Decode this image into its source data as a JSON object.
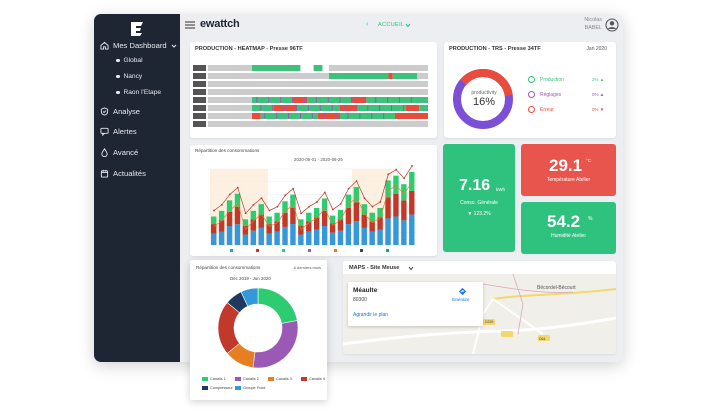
{
  "app": {
    "brand": "ewattch",
    "page_select": "ACCUEIL",
    "user_first": "Nicolas",
    "user_last": "BABEL"
  },
  "sidebar": {
    "dashboard": "Mes Dashboard",
    "subs": [
      "Global",
      "Nancy",
      "Raon l'Etape"
    ],
    "items": [
      "Analyse",
      "Alertes",
      "Avancé",
      "Actualités"
    ]
  },
  "heatmap": {
    "title": "PRODUCTION - HEATMAP - Presse 96TF"
  },
  "trs": {
    "title": "PRODUCTION - TRS - Presse 34TF",
    "period": "Jan 2020",
    "gauge_label": "productivity",
    "gauge_value": "16%",
    "legend": [
      {
        "label": "Production",
        "pct": "2%",
        "color": "#3ec27b"
      },
      {
        "label": "Réglages",
        "pct": "0%",
        "color": "#9b59b6"
      },
      {
        "label": "Erreur",
        "pct": "0%",
        "color": "#e74c3c"
      }
    ]
  },
  "kpi": {
    "conso_value": "7.16",
    "conso_unit": "kWh",
    "conso_label": "Conso. Générale",
    "conso_delta": "▼ 123.2%",
    "temp_value": "29.1",
    "temp_unit": "°C",
    "temp_label": "Température Atelier",
    "hum_value": "54.2",
    "hum_unit": "%",
    "hum_label": "Humidité Atelier"
  },
  "conso_chart": {
    "title": "Répartition des consommations",
    "subtitle": "2020-06-01 - 2020-06-26"
  },
  "donut_card": {
    "title": "Répartition des consommations",
    "range": "6 derniers mois",
    "subtitle": "Dec 2019 - Jun 2020",
    "legend": [
      "Canalis 1",
      "Canalis 2",
      "Canalis 3",
      "Canalis 4",
      "Compresseur",
      "Groupe Froid"
    ]
  },
  "map": {
    "title": "MAPS - Site Meuse",
    "place_name": "Méaulte",
    "place_code": "80300",
    "link_itinerary": "Itinéraire",
    "link_enlarge": "Agrandir le plan",
    "labels": [
      "Bécordel-Bécourt",
      "D329",
      "D64"
    ]
  },
  "colors": {
    "sidebar": "#1e2533",
    "green": "#2ec27e",
    "red": "#e8554c",
    "purple": "#8e44ad",
    "orange": "#e67e22",
    "navy": "#2c3e66",
    "darkred": "#c0392b",
    "blue": "#3498db"
  },
  "chart_data": [
    {
      "type": "pie",
      "labels": [
        "Canalis 1",
        "Canalis 2",
        "Canalis 3",
        "Canalis 4",
        "Compresseur",
        "Groupe Froid"
      ],
      "values": [
        22,
        30,
        12,
        22,
        7,
        7
      ],
      "colors": [
        "#2ecc71",
        "#9b59b6",
        "#e67e22",
        "#c0392b",
        "#1e3a5f",
        "#3498db"
      ]
    },
    {
      "type": "bar",
      "title": "Répartition des consommations",
      "series": [
        {
          "name": "Canalis 1",
          "values": [
            12,
            14,
            20,
            22,
            11,
            15,
            18,
            12,
            14,
            19,
            22,
            11,
            14,
            16,
            20,
            13,
            15,
            22,
            25,
            18,
            14,
            16,
            28,
            30,
            26,
            32
          ]
        },
        {
          "name": "Canalis 2",
          "values": [
            10,
            12,
            15,
            18,
            9,
            12,
            14,
            10,
            11,
            15,
            17,
            9,
            11,
            13,
            16,
            10,
            12,
            17,
            20,
            14,
            11,
            13,
            22,
            24,
            21,
            25
          ]
        },
        {
          "name": "Canalis 3",
          "values": [
            8,
            10,
            12,
            14,
            7,
            9,
            11,
            8,
            9,
            12,
            14,
            7,
            9,
            10,
            13,
            8,
            10,
            14,
            16,
            11,
            9,
            10,
            18,
            19,
            17,
            20
          ]
        }
      ]
    }
  ]
}
